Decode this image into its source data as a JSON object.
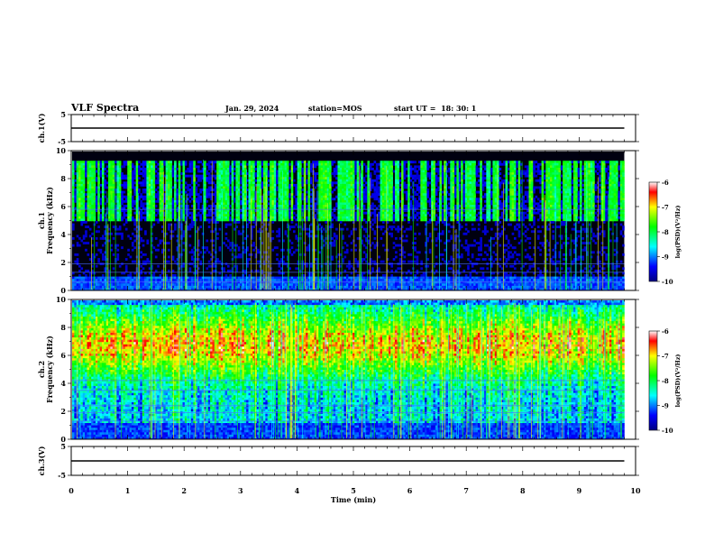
{
  "header": {
    "title": "VLF Spectra",
    "date": "Jan. 29, 2024",
    "station": "station=MOS",
    "start": "start UT =  18: 30: 1"
  },
  "chart_data": [
    {
      "type": "line",
      "panel": "ch1-voltage",
      "ylabel": "ch.1(V)",
      "ylim": [
        -5,
        5
      ],
      "yticks": [
        "5",
        "-5"
      ],
      "xlim": [
        0,
        10
      ],
      "series": [
        {
          "x": [
            0.0,
            9.8
          ],
          "y": [
            0.0,
            0.0
          ]
        }
      ]
    },
    {
      "type": "heatmap",
      "panel": "ch1-spectrogram",
      "ylabel": "ch.1\nFrequency (kHz)",
      "ylim": [
        0,
        10
      ],
      "yticks": [
        "0",
        "2",
        "4",
        "6",
        "8",
        "10"
      ],
      "xlim": [
        0,
        10
      ],
      "data_xmax": 9.8,
      "colorbar": {
        "label": "log(PSD)(V²/Hz)",
        "range": [
          -10,
          -6
        ],
        "ticks": [
          "-6",
          "-7",
          "-8",
          "-9",
          "-10"
        ]
      }
    },
    {
      "type": "heatmap",
      "panel": "ch2-spectrogram",
      "ylabel": "ch.2\nFrequency (kHz)",
      "ylim": [
        0,
        10
      ],
      "yticks": [
        "0",
        "2",
        "4",
        "6",
        "8",
        "10"
      ],
      "xlim": [
        0,
        10
      ],
      "data_xmax": 9.8,
      "colorbar": {
        "label": "log(PSD)(V²/Hz)",
        "range": [
          -10,
          -6
        ],
        "ticks": [
          "-6",
          "-7",
          "-8",
          "-9",
          "-10"
        ]
      }
    },
    {
      "type": "line",
      "panel": "ch3-voltage",
      "ylabel": "ch.3(V)",
      "ylim": [
        -5,
        5
      ],
      "yticks": [
        "5",
        "-5"
      ],
      "xlim": [
        0,
        10
      ],
      "xlabel": "Time (min)",
      "xticks": [
        "0",
        "1",
        "2",
        "3",
        "4",
        "5",
        "6",
        "7",
        "8",
        "9",
        "10"
      ],
      "series": [
        {
          "x": [
            0.0,
            9.8
          ],
          "y": [
            0.0,
            0.0
          ]
        }
      ]
    }
  ]
}
